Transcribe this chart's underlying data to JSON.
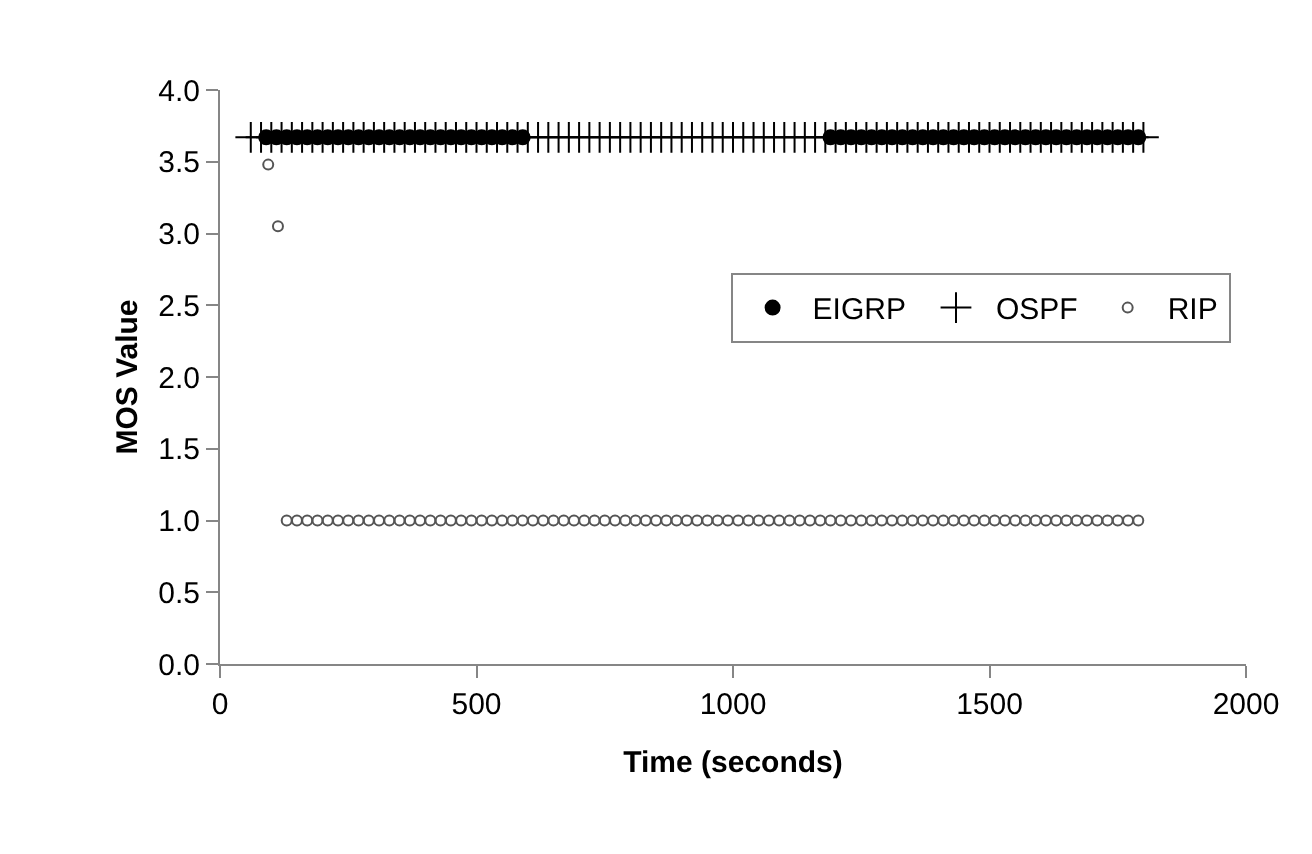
{
  "chart_data": {
    "type": "scatter",
    "xlabel": "Time (seconds)",
    "ylabel": "MOS Value",
    "xlim": [
      0,
      2000
    ],
    "xticks": [
      0,
      500,
      1000,
      1500,
      2000
    ],
    "ylim": [
      0,
      4
    ],
    "yticks": [
      {
        "value": 0,
        "label": "0.0"
      },
      {
        "value": 0.5,
        "label": "0.5"
      },
      {
        "value": 1,
        "label": "1.0"
      },
      {
        "value": 1.5,
        "label": "1.5"
      },
      {
        "value": 2,
        "label": "2.0"
      },
      {
        "value": 2.5,
        "label": "2.5"
      },
      {
        "value": 3,
        "label": "3.0"
      },
      {
        "value": 3.5,
        "label": "3.5"
      },
      {
        "value": 4,
        "label": "4.0"
      }
    ],
    "legend": "right",
    "series": [
      {
        "name": "EIGRP",
        "color": "#000000",
        "marker": "circle",
        "x": [
          90,
          110,
          130,
          150,
          170,
          190,
          210,
          230,
          250,
          270,
          290,
          310,
          330,
          350,
          370,
          390,
          410,
          430,
          450,
          470,
          490,
          510,
          530,
          550,
          570,
          590,
          1190,
          1210,
          1230,
          1250,
          1270,
          1290,
          1310,
          1330,
          1350,
          1370,
          1390,
          1410,
          1430,
          1450,
          1470,
          1490,
          1510,
          1530,
          1550,
          1570,
          1590,
          1610,
          1630,
          1650,
          1670,
          1690,
          1710,
          1730,
          1750,
          1770,
          1790
        ],
        "values": [
          3.67,
          3.67,
          3.67,
          3.67,
          3.67,
          3.67,
          3.67,
          3.67,
          3.67,
          3.67,
          3.67,
          3.67,
          3.67,
          3.67,
          3.67,
          3.67,
          3.67,
          3.67,
          3.67,
          3.67,
          3.67,
          3.67,
          3.67,
          3.67,
          3.67,
          3.67,
          3.67,
          3.67,
          3.67,
          3.67,
          3.67,
          3.67,
          3.67,
          3.67,
          3.67,
          3.67,
          3.67,
          3.67,
          3.67,
          3.67,
          3.67,
          3.67,
          3.67,
          3.67,
          3.67,
          3.67,
          3.67,
          3.67,
          3.67,
          3.67,
          3.67,
          3.67,
          3.67,
          3.67,
          3.67,
          3.67,
          3.67
        ]
      },
      {
        "name": "OSPF",
        "color": "#000000",
        "marker": "cross",
        "x": [
          60,
          80,
          100,
          120,
          140,
          160,
          180,
          200,
          220,
          240,
          260,
          280,
          300,
          320,
          340,
          360,
          380,
          400,
          420,
          440,
          460,
          480,
          500,
          520,
          540,
          560,
          580,
          600,
          620,
          640,
          660,
          680,
          700,
          720,
          740,
          760,
          780,
          800,
          820,
          840,
          860,
          880,
          900,
          920,
          940,
          960,
          980,
          1000,
          1020,
          1040,
          1060,
          1080,
          1100,
          1120,
          1140,
          1160,
          1180,
          1200,
          1220,
          1240,
          1260,
          1280,
          1300,
          1320,
          1340,
          1360,
          1380,
          1400,
          1420,
          1440,
          1460,
          1480,
          1500,
          1520,
          1540,
          1560,
          1580,
          1600,
          1620,
          1640,
          1660,
          1680,
          1700,
          1720,
          1740,
          1760,
          1780,
          1800
        ],
        "values": [
          3.67,
          3.67,
          3.67,
          3.67,
          3.67,
          3.67,
          3.67,
          3.67,
          3.67,
          3.67,
          3.67,
          3.67,
          3.67,
          3.67,
          3.67,
          3.67,
          3.67,
          3.67,
          3.67,
          3.67,
          3.67,
          3.67,
          3.67,
          3.67,
          3.67,
          3.67,
          3.67,
          3.67,
          3.67,
          3.67,
          3.67,
          3.67,
          3.67,
          3.67,
          3.67,
          3.67,
          3.67,
          3.67,
          3.67,
          3.67,
          3.67,
          3.67,
          3.67,
          3.67,
          3.67,
          3.67,
          3.67,
          3.67,
          3.67,
          3.67,
          3.67,
          3.67,
          3.67,
          3.67,
          3.67,
          3.67,
          3.67,
          3.67,
          3.67,
          3.67,
          3.67,
          3.67,
          3.67,
          3.67,
          3.67,
          3.67,
          3.67,
          3.67,
          3.67,
          3.67,
          3.67,
          3.67,
          3.67,
          3.67,
          3.67,
          3.67,
          3.67,
          3.67,
          3.67,
          3.67,
          3.67,
          3.67,
          3.67,
          3.67,
          3.67,
          3.67,
          3.67,
          3.67
        ]
      },
      {
        "name": "RIP",
        "color": "#555555",
        "marker": "circle-open",
        "x": [
          94,
          113,
          130,
          150,
          170,
          190,
          210,
          230,
          250,
          270,
          290,
          310,
          330,
          350,
          370,
          390,
          410,
          430,
          450,
          470,
          490,
          510,
          530,
          550,
          570,
          590,
          610,
          630,
          650,
          670,
          690,
          710,
          730,
          750,
          770,
          790,
          810,
          830,
          850,
          870,
          890,
          910,
          930,
          950,
          970,
          990,
          1010,
          1030,
          1050,
          1070,
          1090,
          1110,
          1130,
          1150,
          1170,
          1190,
          1210,
          1230,
          1250,
          1270,
          1290,
          1310,
          1330,
          1350,
          1370,
          1390,
          1410,
          1430,
          1450,
          1470,
          1490,
          1510,
          1530,
          1550,
          1570,
          1590,
          1610,
          1630,
          1650,
          1670,
          1690,
          1710,
          1730,
          1750,
          1770,
          1790
        ],
        "values": [
          3.48,
          3.05,
          1,
          1,
          1,
          1,
          1,
          1,
          1,
          1,
          1,
          1,
          1,
          1,
          1,
          1,
          1,
          1,
          1,
          1,
          1,
          1,
          1,
          1,
          1,
          1,
          1,
          1,
          1,
          1,
          1,
          1,
          1,
          1,
          1,
          1,
          1,
          1,
          1,
          1,
          1,
          1,
          1,
          1,
          1,
          1,
          1,
          1,
          1,
          1,
          1,
          1,
          1,
          1,
          1,
          1,
          1,
          1,
          1,
          1,
          1,
          1,
          1,
          1,
          1,
          1,
          1,
          1,
          1,
          1,
          1,
          1,
          1,
          1,
          1,
          1,
          1,
          1,
          1,
          1,
          1,
          1,
          1,
          1,
          1,
          1
        ]
      }
    ]
  }
}
